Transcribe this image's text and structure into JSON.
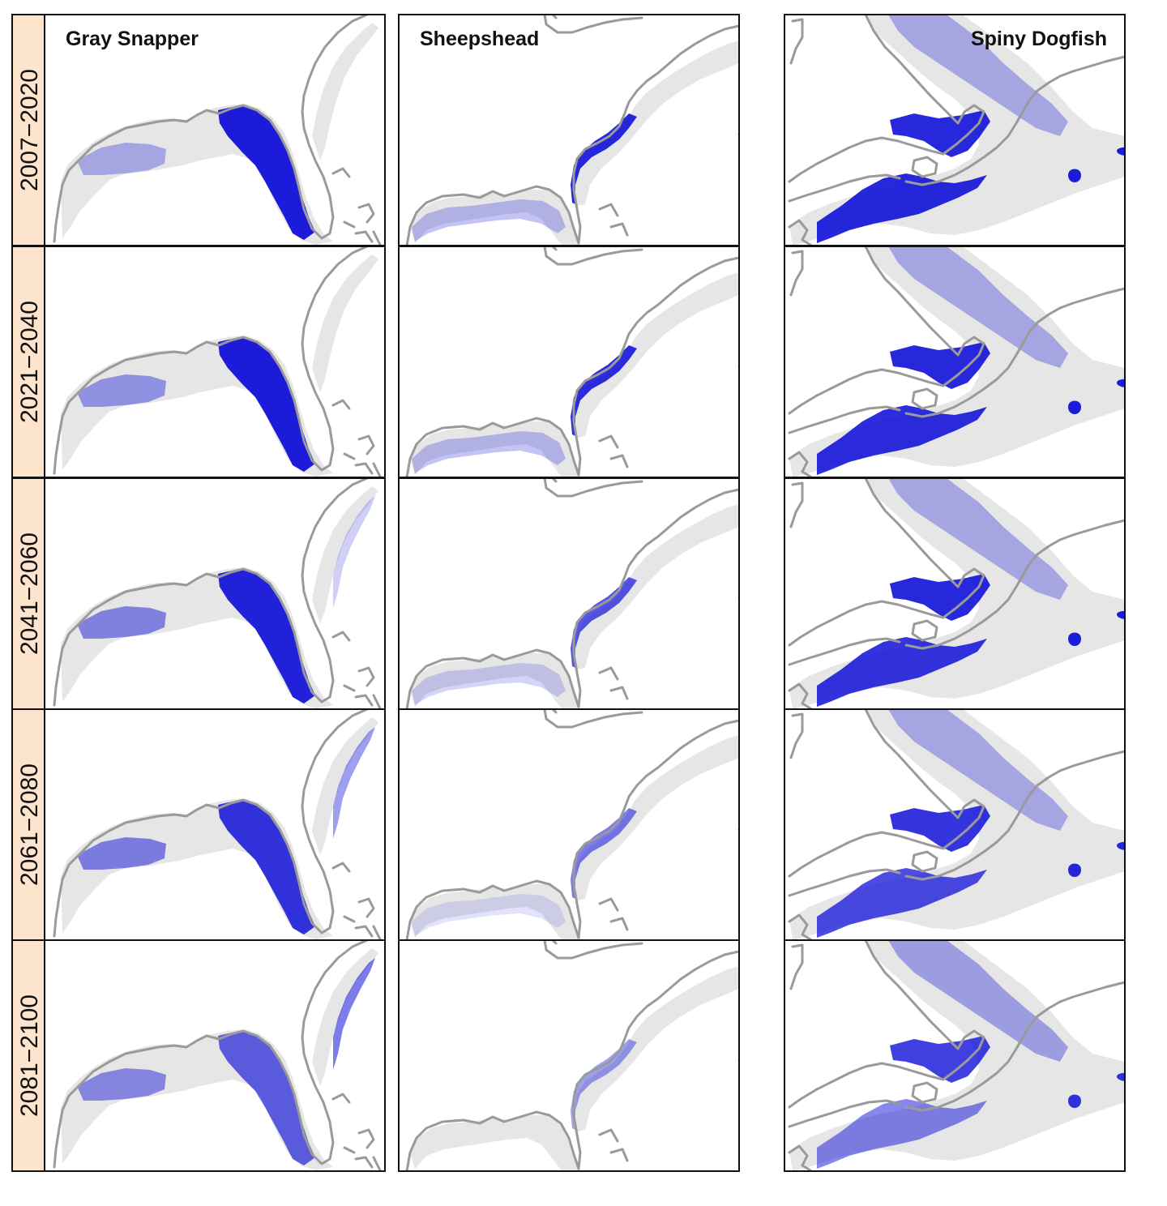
{
  "species": [
    "Gray Snapper",
    "Sheepshead",
    "Spiny Dogfish"
  ],
  "periods": [
    "2007−2020",
    "2021−2040",
    "2041−2060",
    "2061−2080",
    "2081−2100"
  ],
  "colors": {
    "label_strip": "#fde4cc",
    "shelf": "#e6e6e6",
    "coastline": "#9a9a9a",
    "habitat_high": "#1010d8",
    "habitat_low": "#c8c8f4"
  },
  "habitat_intensity": {
    "Gray Snapper": {
      "gulf_west": [
        0.3,
        0.4,
        0.48,
        0.5,
        0.45
      ],
      "florida_shelf": [
        0.95,
        0.95,
        0.92,
        0.85,
        0.65
      ],
      "atlantic_coast": [
        0.0,
        0.0,
        0.2,
        0.4,
        0.55
      ]
    },
    "Sheepshead": {
      "gulf": [
        0.25,
        0.25,
        0.18,
        0.08,
        0.0
      ],
      "atlantic_band": [
        0.9,
        0.88,
        0.7,
        0.55,
        0.4
      ]
    },
    "Spiny Dogfish": {
      "northern_shelf": [
        0.3,
        0.3,
        0.3,
        0.3,
        0.35
      ],
      "gulf_of_maine_band": [
        0.9,
        0.9,
        0.9,
        0.85,
        0.8
      ],
      "georges_bank_region": [
        0.9,
        0.88,
        0.85,
        0.75,
        0.5
      ],
      "offshore_spot": [
        0.95,
        0.95,
        0.95,
        0.9,
        0.85
      ]
    }
  }
}
